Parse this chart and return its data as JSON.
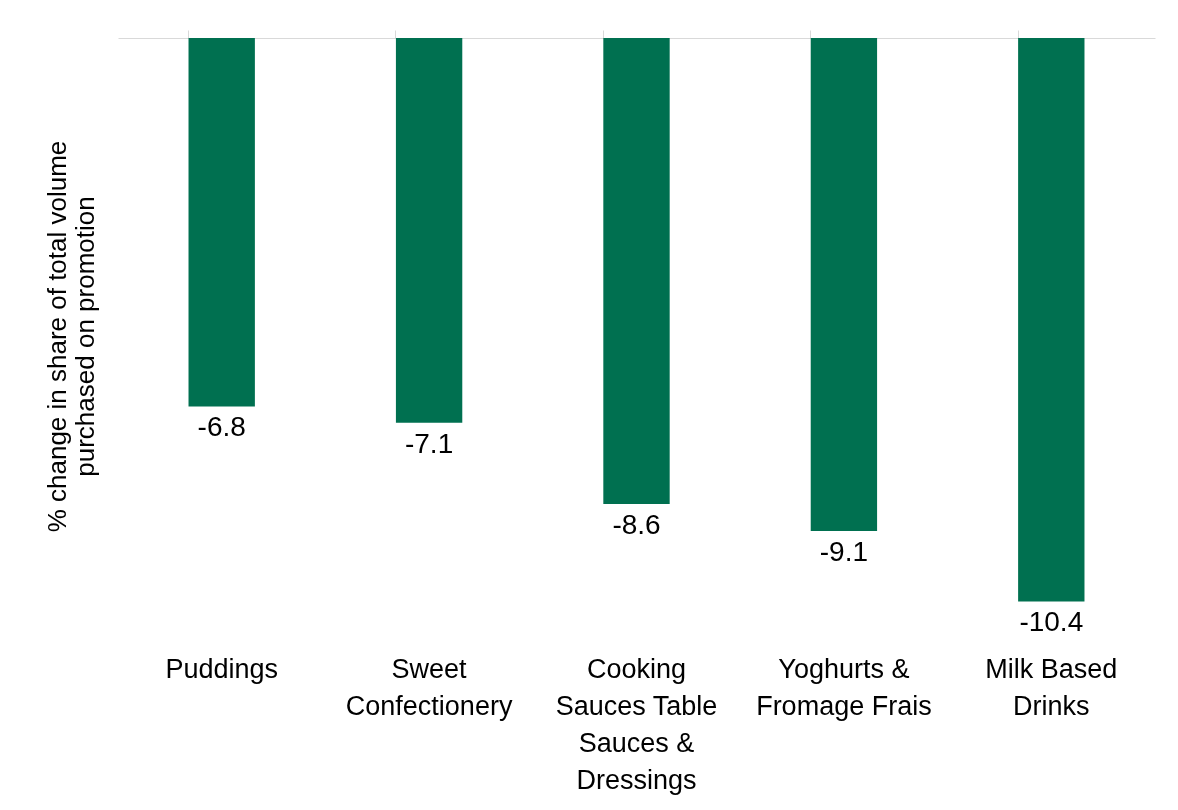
{
  "chart_data": {
    "type": "bar",
    "ylabel": "% change in share of total volume purchased on promotion",
    "categories": [
      "Puddings",
      "Sweet Confectionery",
      "Cooking Sauces Table Sauces & Dressings",
      "Yoghurts & Fromage Frais",
      "Milk Based Drinks"
    ],
    "values": [
      -6.8,
      -7.1,
      -8.6,
      -9.1,
      -10.4
    ],
    "color": "#007050",
    "data_labels": true,
    "tick_labels": "x"
  }
}
